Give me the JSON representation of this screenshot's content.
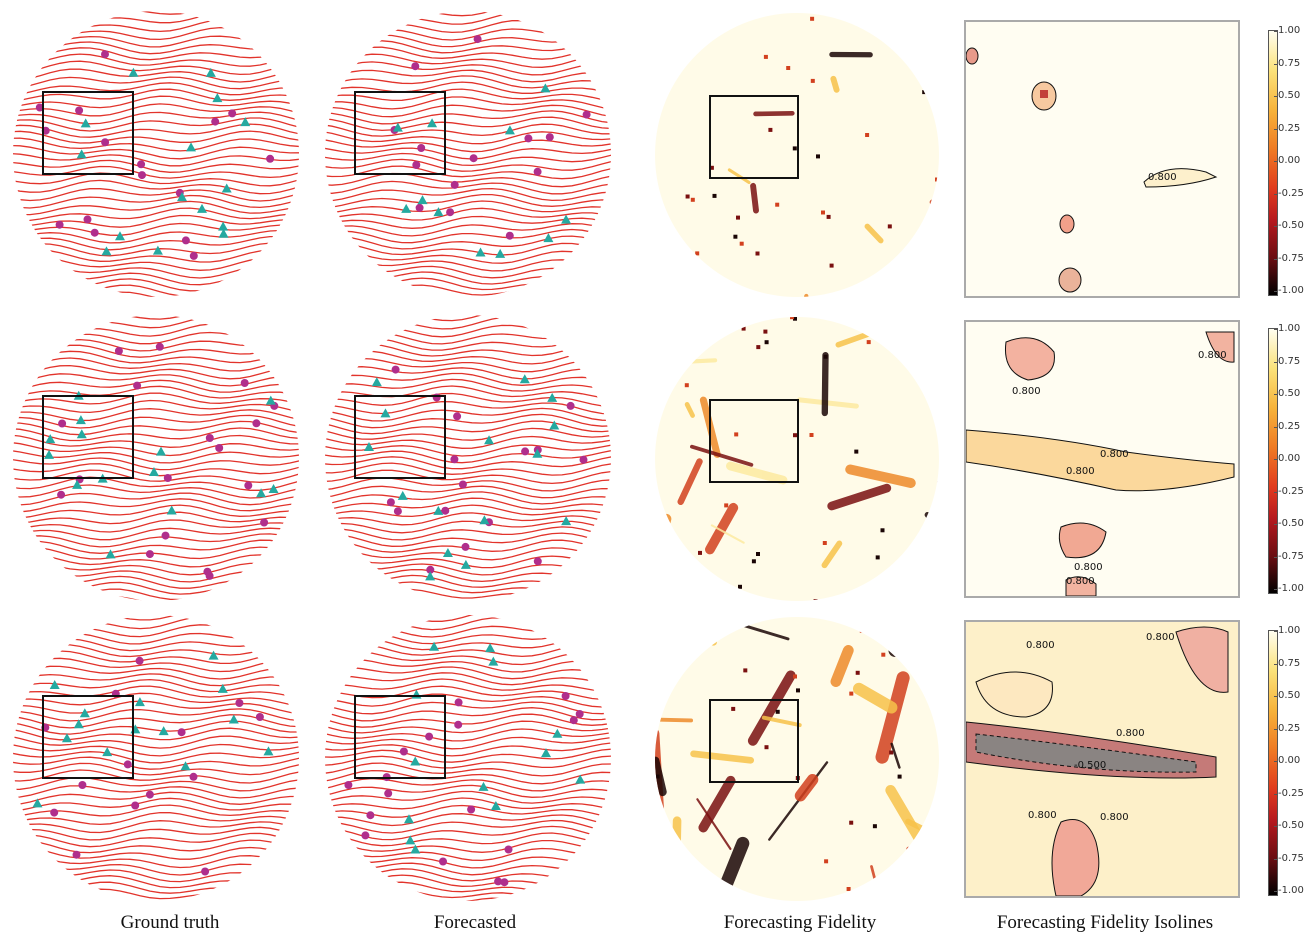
{
  "columns": [
    {
      "caption": "Ground truth"
    },
    {
      "caption": "Forecasted"
    },
    {
      "caption": "Forecasting Fidelity"
    },
    {
      "caption": "Forecasting Fidelity Isolines"
    }
  ],
  "colorbar_ticks": [
    "1.00",
    "0.75",
    "0.50",
    "0.25",
    "0.00",
    "-0.25",
    "-0.50",
    "-0.75",
    "-1.00"
  ],
  "isoline_labels": {
    "row1": [
      "0.800"
    ],
    "row2": [
      "0.800",
      "0.800",
      "0.800",
      "0.800",
      "0.800",
      "0.800"
    ],
    "row3": [
      "0.800",
      "0.800",
      "0.800",
      "-0.500",
      "0.800",
      "0.800"
    ]
  },
  "colors": {
    "stripe": "#e2332b",
    "defect_plus": "#b02e8c",
    "defect_minus": "#25a9a0",
    "box": "#111111",
    "panel_border": "#aaaaaa"
  },
  "rows": 3
}
